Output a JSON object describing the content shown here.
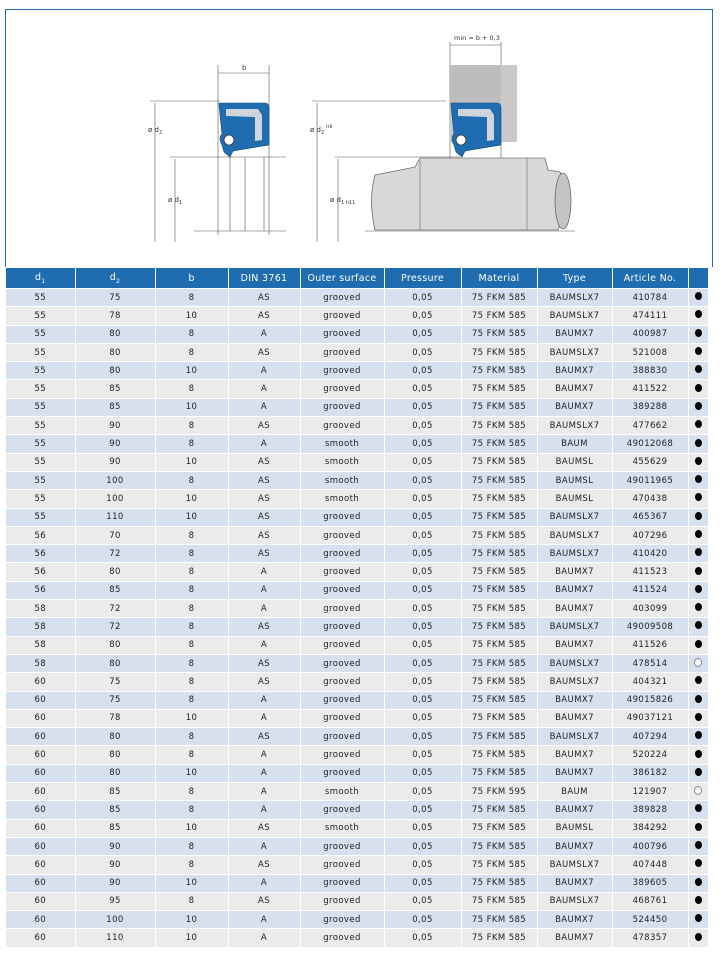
{
  "diagram": {
    "b_label": "b",
    "min_label": "min = b + 0,3",
    "d2_label": "ø d",
    "d2_sub": "2",
    "d2_sup": "H8",
    "d1_label": "ø d",
    "d1_sub": "1",
    "d1_sub2": "1 h11"
  },
  "colors": {
    "header": "#1f6db0",
    "row_odd": "#d6e0ef",
    "row_even": "#ebebeb",
    "seal": "#1f6db0"
  },
  "table": {
    "headers": [
      "d",
      "d",
      "b",
      "DIN 3761",
      "Outer surface",
      "Pressure",
      "Material",
      "Type",
      "Article No.",
      ""
    ],
    "header_subs": [
      "1",
      "2"
    ],
    "rows": [
      [
        "55",
        "75",
        "8",
        "AS",
        "grooved",
        "0,05",
        "75 FKM 585",
        "BAUMSLX7",
        "410784",
        "filled"
      ],
      [
        "55",
        "78",
        "10",
        "AS",
        "grooved",
        "0,05",
        "75 FKM 585",
        "BAUMSLX7",
        "474111",
        "filled"
      ],
      [
        "55",
        "80",
        "8",
        "A",
        "grooved",
        "0,05",
        "75 FKM 585",
        "BAUMX7",
        "400987",
        "filled"
      ],
      [
        "55",
        "80",
        "8",
        "AS",
        "grooved",
        "0,05",
        "75 FKM 585",
        "BAUMSLX7",
        "521008",
        "filled"
      ],
      [
        "55",
        "80",
        "10",
        "A",
        "grooved",
        "0,05",
        "75 FKM 585",
        "BAUMX7",
        "388830",
        "filled"
      ],
      [
        "55",
        "85",
        "8",
        "A",
        "grooved",
        "0,05",
        "75 FKM 585",
        "BAUMX7",
        "411522",
        "filled"
      ],
      [
        "55",
        "85",
        "10",
        "A",
        "grooved",
        "0,05",
        "75 FKM 585",
        "BAUMX7",
        "389288",
        "filled"
      ],
      [
        "55",
        "90",
        "8",
        "AS",
        "grooved",
        "0,05",
        "75 FKM 585",
        "BAUMSLX7",
        "477662",
        "filled"
      ],
      [
        "55",
        "90",
        "8",
        "A",
        "smooth",
        "0,05",
        "75 FKM 585",
        "BAUM",
        "49012068",
        "filled"
      ],
      [
        "55",
        "90",
        "10",
        "AS",
        "smooth",
        "0,05",
        "75 FKM 585",
        "BAUMSL",
        "455629",
        "filled"
      ],
      [
        "55",
        "100",
        "8",
        "AS",
        "smooth",
        "0,05",
        "75 FKM 585",
        "BAUMSL",
        "49011965",
        "filled"
      ],
      [
        "55",
        "100",
        "10",
        "AS",
        "smooth",
        "0,05",
        "75 FKM 585",
        "BAUMSL",
        "470438",
        "filled"
      ],
      [
        "55",
        "110",
        "10",
        "AS",
        "grooved",
        "0,05",
        "75 FKM 585",
        "BAUMSLX7",
        "465367",
        "filled"
      ],
      [
        "56",
        "70",
        "8",
        "AS",
        "grooved",
        "0,05",
        "75 FKM 585",
        "BAUMSLX7",
        "407296",
        "filled"
      ],
      [
        "56",
        "72",
        "8",
        "AS",
        "grooved",
        "0,05",
        "75 FKM 585",
        "BAUMSLX7",
        "410420",
        "filled"
      ],
      [
        "56",
        "80",
        "8",
        "A",
        "grooved",
        "0,05",
        "75 FKM 585",
        "BAUMX7",
        "411523",
        "filled"
      ],
      [
        "56",
        "85",
        "8",
        "A",
        "grooved",
        "0,05",
        "75 FKM 585",
        "BAUMX7",
        "411524",
        "filled"
      ],
      [
        "58",
        "72",
        "8",
        "A",
        "grooved",
        "0,05",
        "75 FKM 585",
        "BAUMX7",
        "403099",
        "filled"
      ],
      [
        "58",
        "72",
        "8",
        "AS",
        "grooved",
        "0,05",
        "75 FKM 585",
        "BAUMSLX7",
        "49009508",
        "filled"
      ],
      [
        "58",
        "80",
        "8",
        "A",
        "grooved",
        "0,05",
        "75 FKM 585",
        "BAUMX7",
        "411526",
        "filled"
      ],
      [
        "58",
        "80",
        "8",
        "AS",
        "grooved",
        "0,05",
        "75 FKM 585",
        "BAUMSLX7",
        "478514",
        "open"
      ],
      [
        "60",
        "75",
        "8",
        "AS",
        "grooved",
        "0,05",
        "75 FKM 585",
        "BAUMSLX7",
        "404321",
        "filled"
      ],
      [
        "60",
        "75",
        "8",
        "A",
        "grooved",
        "0,05",
        "75 FKM 585",
        "BAUMX7",
        "49015826",
        "filled"
      ],
      [
        "60",
        "78",
        "10",
        "A",
        "grooved",
        "0,05",
        "75 FKM 585",
        "BAUMX7",
        "49037121",
        "filled"
      ],
      [
        "60",
        "80",
        "8",
        "AS",
        "grooved",
        "0,05",
        "75 FKM 585",
        "BAUMSLX7",
        "407294",
        "filled"
      ],
      [
        "60",
        "80",
        "8",
        "A",
        "grooved",
        "0,05",
        "75 FKM 585",
        "BAUMX7",
        "520224",
        "filled"
      ],
      [
        "60",
        "80",
        "10",
        "A",
        "grooved",
        "0,05",
        "75 FKM 585",
        "BAUMX7",
        "386182",
        "filled"
      ],
      [
        "60",
        "85",
        "8",
        "A",
        "smooth",
        "0,05",
        "75 FKM 595",
        "BAUM",
        "121907",
        "open"
      ],
      [
        "60",
        "85",
        "8",
        "A",
        "grooved",
        "0,05",
        "75 FKM 585",
        "BAUMX7",
        "389828",
        "filled"
      ],
      [
        "60",
        "85",
        "10",
        "AS",
        "smooth",
        "0,05",
        "75 FKM 585",
        "BAUMSL",
        "384292",
        "filled"
      ],
      [
        "60",
        "90",
        "8",
        "A",
        "grooved",
        "0,05",
        "75 FKM 585",
        "BAUMX7",
        "400796",
        "filled"
      ],
      [
        "60",
        "90",
        "8",
        "AS",
        "grooved",
        "0,05",
        "75 FKM 585",
        "BAUMSLX7",
        "407448",
        "filled"
      ],
      [
        "60",
        "90",
        "10",
        "A",
        "grooved",
        "0,05",
        "75 FKM 585",
        "BAUMX7",
        "389605",
        "filled"
      ],
      [
        "60",
        "95",
        "8",
        "AS",
        "grooved",
        "0,05",
        "75 FKM 585",
        "BAUMSLX7",
        "468761",
        "filled"
      ],
      [
        "60",
        "100",
        "10",
        "A",
        "grooved",
        "0,05",
        "75 FKM 585",
        "BAUMX7",
        "524450",
        "filled"
      ],
      [
        "60",
        "110",
        "10",
        "A",
        "grooved",
        "0,05",
        "75 FKM 585",
        "BAUMX7",
        "478357",
        "filled"
      ]
    ]
  }
}
